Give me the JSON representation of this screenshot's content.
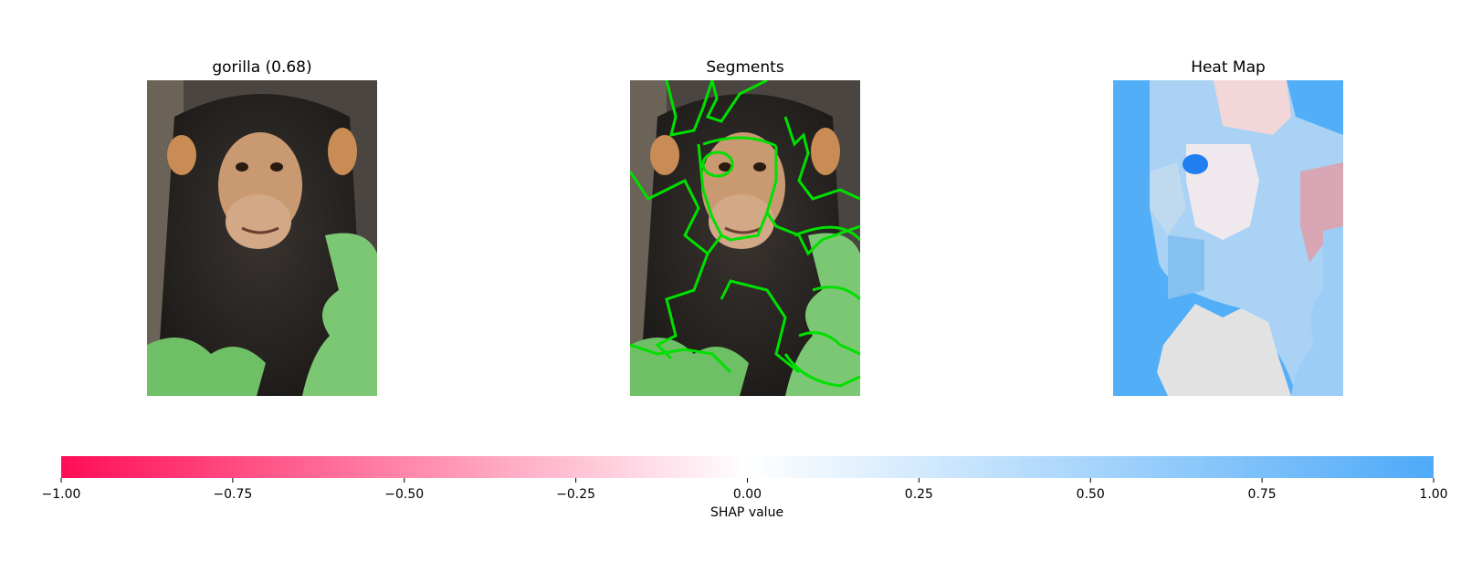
{
  "panels": [
    {
      "title": "gorilla (0.68)",
      "image": "chimpanzee-photo"
    },
    {
      "title": "Segments",
      "image": "chimpanzee-photo-with-segment-outlines"
    },
    {
      "title": "Heat Map",
      "image": "shap-heat-map-overlay"
    }
  ],
  "chart_data": {
    "type": "heatmap",
    "colorbar": {
      "label": "SHAP value",
      "range": [
        -1.0,
        1.0
      ],
      "ticks": [
        -1.0,
        -0.75,
        -0.5,
        -0.25,
        0.0,
        0.25,
        0.5,
        0.75,
        1.0
      ],
      "tick_labels": [
        "−1.00",
        "−0.75",
        "−0.50",
        "−0.25",
        "0.00",
        "0.25",
        "0.50",
        "0.75",
        "1.00"
      ],
      "colors": {
        "negative": "#ff0d57",
        "zero": "#ffffff",
        "positive": "#4eaaf8"
      }
    }
  }
}
